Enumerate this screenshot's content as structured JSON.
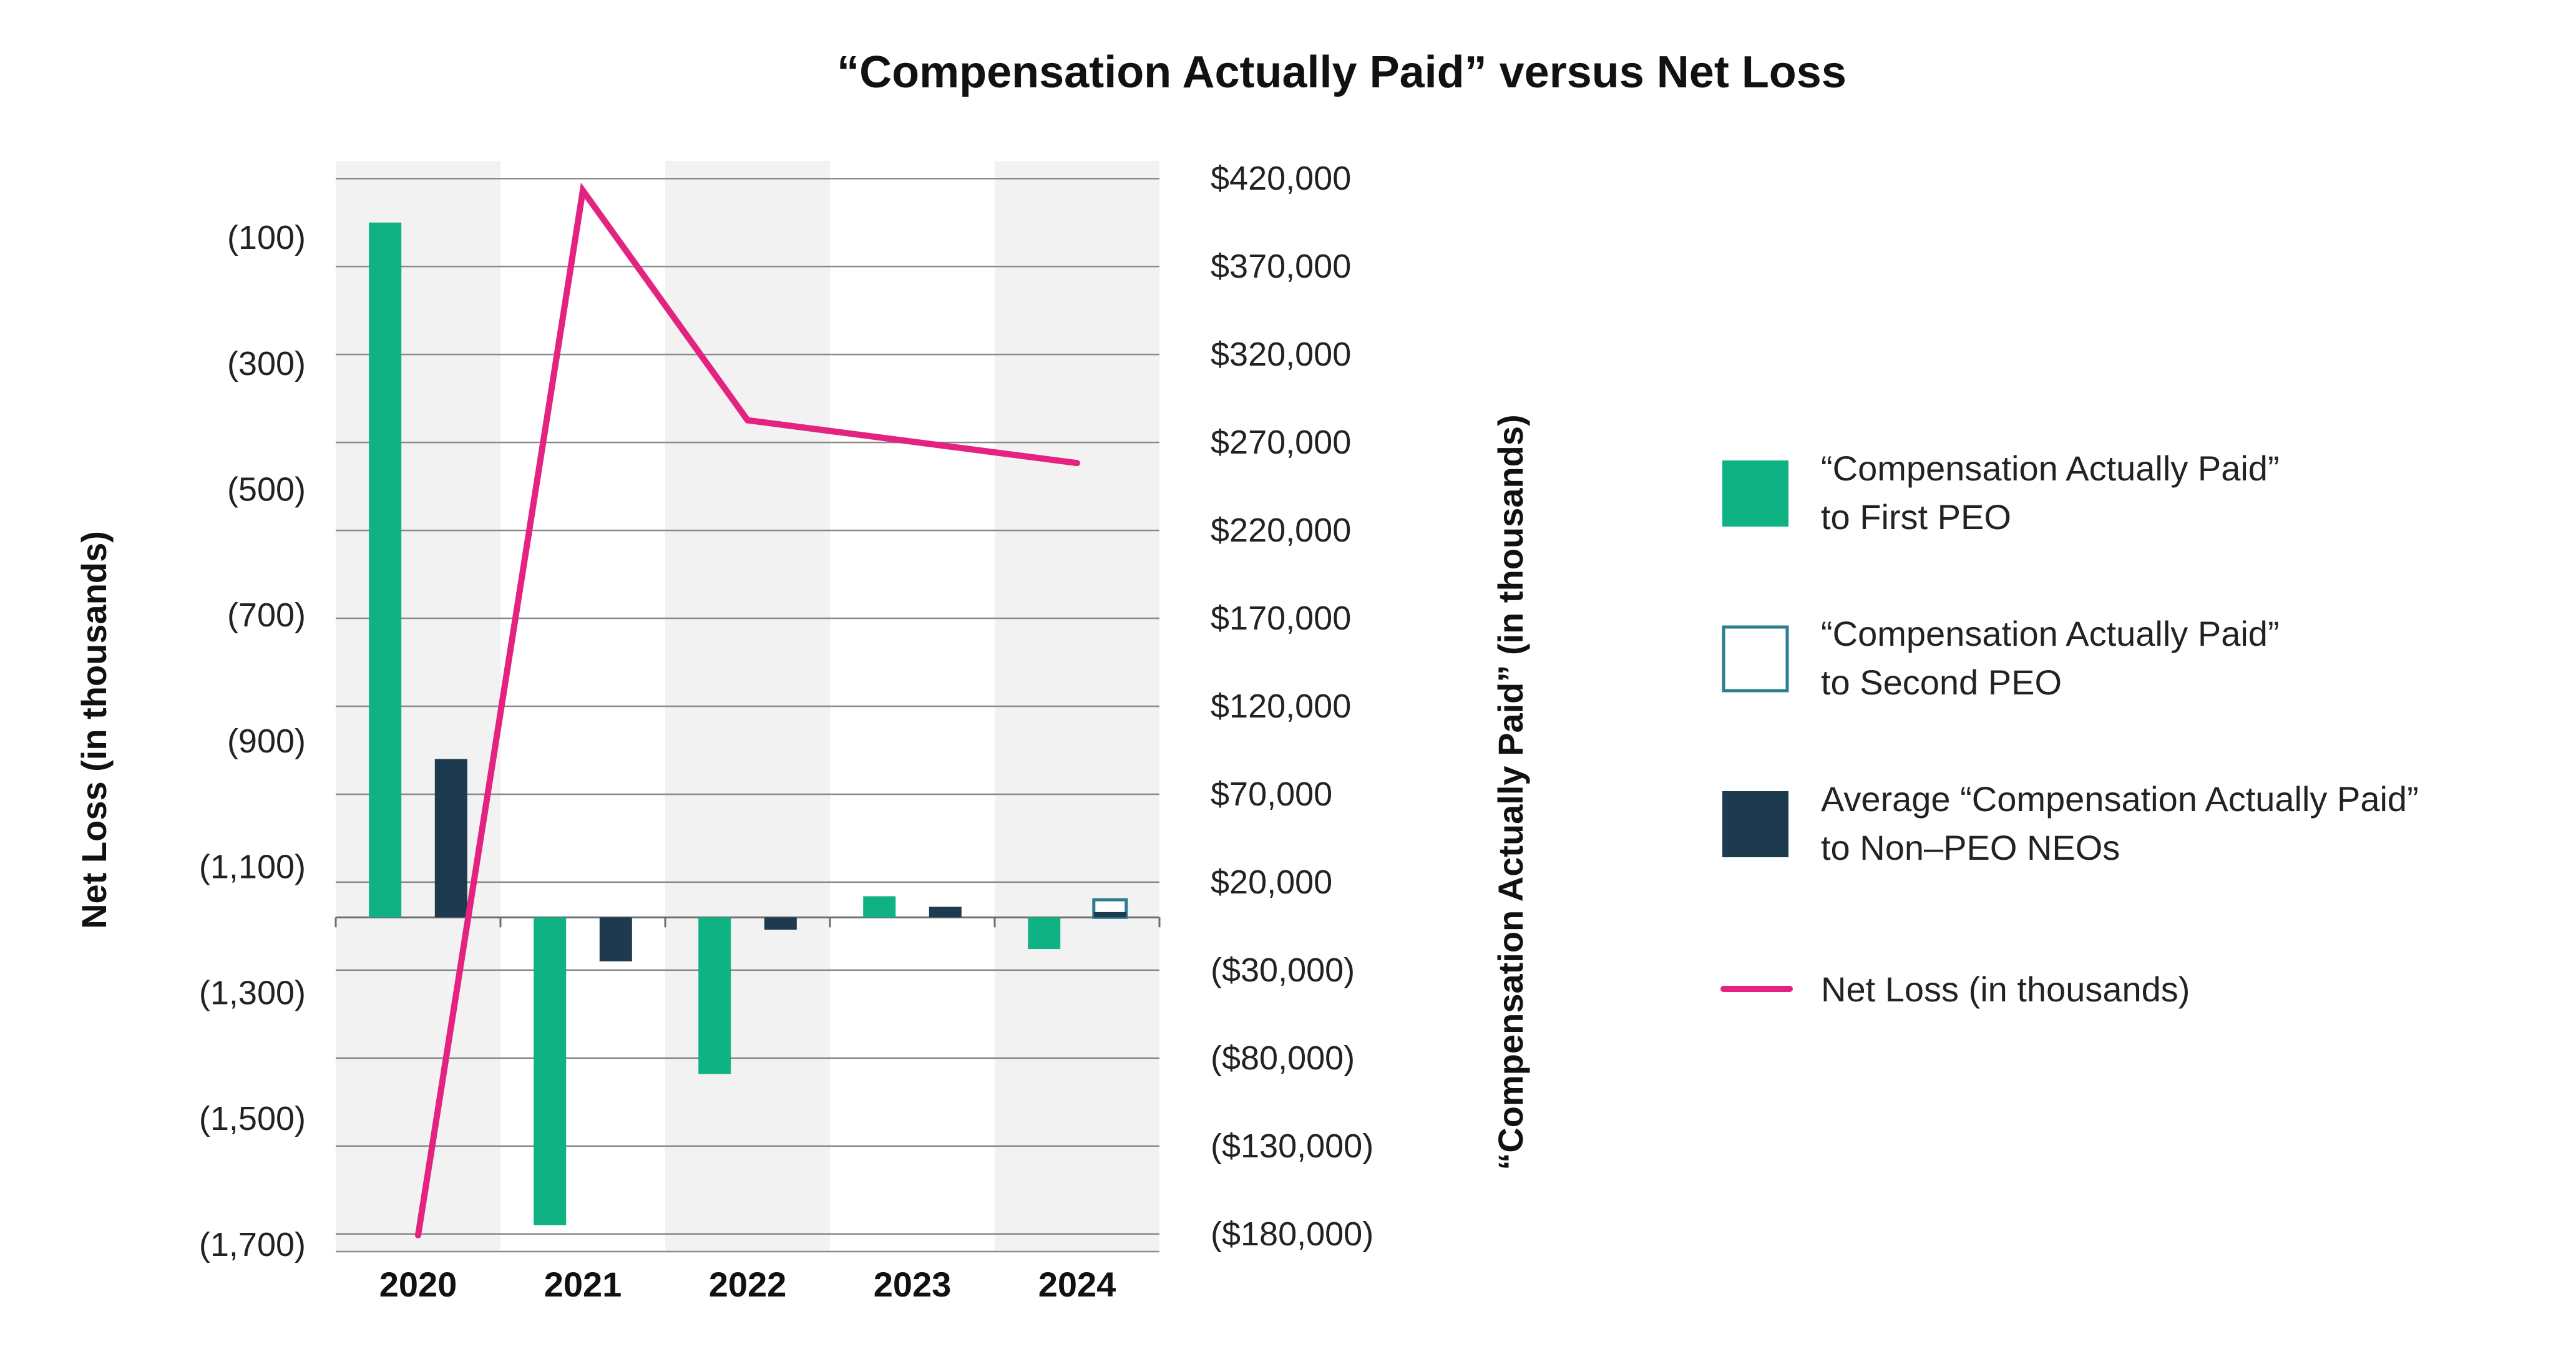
{
  "chart_data": {
    "type": "bar",
    "title": "“Compensation Actually Paid” versus Net Loss",
    "categories": [
      "2020",
      "2021",
      "2022",
      "2023",
      "2024"
    ],
    "left_axis": {
      "label": "Net Loss (in thousands)",
      "range": [
        -1711,
        22
      ],
      "ticks": [
        {
          "value": -100,
          "label": "(100)"
        },
        {
          "value": -300,
          "label": "(300)"
        },
        {
          "value": -500,
          "label": "(500)"
        },
        {
          "value": -700,
          "label": "(700)"
        },
        {
          "value": -900,
          "label": "(900)"
        },
        {
          "value": -1100,
          "label": "(1,100)"
        },
        {
          "value": -1300,
          "label": "(1,300)"
        },
        {
          "value": -1500,
          "label": "(1,500)"
        },
        {
          "value": -1700,
          "label": "(1,700)"
        }
      ]
    },
    "right_axis": {
      "label": "“Compensation Actually Paid” (in thousands)",
      "range": [
        -190000,
        430000
      ],
      "zero_value": 0,
      "ticks": [
        {
          "value": 420000,
          "label": "$420,000"
        },
        {
          "value": 370000,
          "label": "$370,000"
        },
        {
          "value": 320000,
          "label": "$320,000"
        },
        {
          "value": 270000,
          "label": "$270,000"
        },
        {
          "value": 220000,
          "label": "$220,000"
        },
        {
          "value": 170000,
          "label": "$170,000"
        },
        {
          "value": 120000,
          "label": "$120,000"
        },
        {
          "value": 70000,
          "label": "$70,000"
        },
        {
          "value": 20000,
          "label": "$20,000"
        },
        {
          "value": -30000,
          "label": "($30,000)"
        },
        {
          "value": -80000,
          "label": "($80,000)"
        },
        {
          "value": -130000,
          "label": "($130,000)"
        },
        {
          "value": -180000,
          "label": "($180,000)"
        }
      ]
    },
    "series": [
      {
        "name": "“Compensation Actually Paid” to First PEO",
        "legend_lines": [
          "“Compensation Actually Paid”",
          "to First PEO"
        ],
        "kind": "bar",
        "axis": "right",
        "color": "#0fb383",
        "style": "filled",
        "values": [
          395000,
          -175000,
          -89000,
          12000,
          -18000
        ]
      },
      {
        "name": "“Compensation Actually Paid” to Second PEO",
        "legend_lines": [
          "“Compensation Actually Paid”",
          "to Second PEO"
        ],
        "kind": "bar",
        "axis": "right",
        "color": "#2a7f8e",
        "style": "outline",
        "values": [
          null,
          null,
          null,
          null,
          10000
        ]
      },
      {
        "name": "Average “Compensation Actually Paid” to Non-PEO NEOs",
        "legend_lines": [
          "Average “Compensation Actually Paid”",
          "to Non–PEO NEOs"
        ],
        "kind": "bar",
        "axis": "right",
        "color": "#1e3a4f",
        "style": "filled",
        "values": [
          90000,
          -25000,
          -7000,
          6000,
          3000
        ]
      },
      {
        "name": "Net Loss (in thousands)",
        "legend_lines": [
          "Net Loss (in thousands)"
        ],
        "kind": "line",
        "axis": "left",
        "color": "#e3237f",
        "values": [
          -1685,
          -25,
          -390,
          null,
          -458
        ]
      }
    ],
    "grid": true,
    "legend_position": "right"
  }
}
